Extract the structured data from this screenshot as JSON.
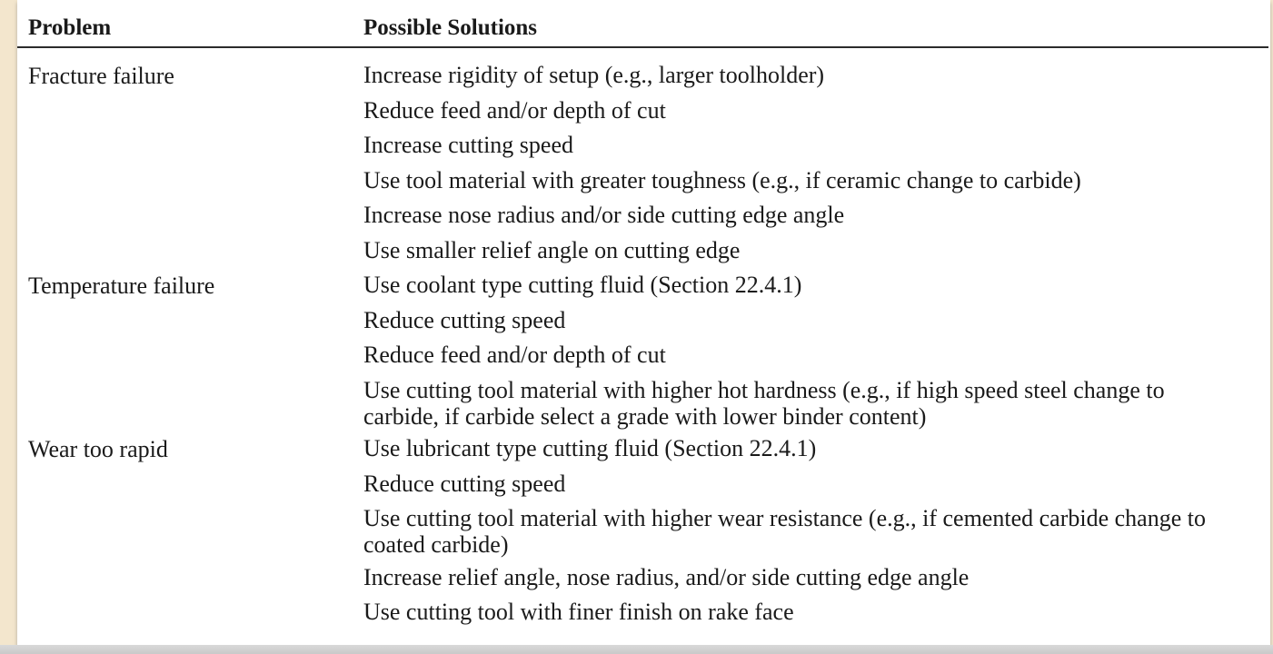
{
  "table": {
    "headers": {
      "problem": "Problem",
      "solutions": "Possible Solutions"
    },
    "rows": [
      {
        "problem": "Fracture failure",
        "solutions": [
          "Increase rigidity of setup (e.g., larger toolholder)",
          "Reduce feed and/or depth of cut",
          "Increase cutting speed",
          "Use tool material with greater toughness (e.g., if ceramic change to carbide)",
          "Increase nose radius and/or side cutting edge angle",
          "Use smaller relief angle on cutting edge"
        ]
      },
      {
        "problem": "Temperature failure",
        "solutions": [
          "Use coolant type cutting fluid (Section 22.4.1)",
          "Reduce cutting speed",
          "Reduce feed and/or depth of cut",
          "Use cutting tool material with higher hot hardness (e.g., if high speed steel change to carbide, if carbide select a grade with lower binder content)"
        ]
      },
      {
        "problem": "Wear too rapid",
        "solutions": [
          "Use lubricant type cutting fluid (Section 22.4.1)",
          "Reduce cutting speed",
          "Use cutting tool material with higher wear resistance (e.g., if cemented carbide change to coated carbide)",
          "Increase relief angle, nose radius, and/or side cutting edge angle",
          "Use cutting tool with finer finish on rake face"
        ]
      }
    ]
  }
}
